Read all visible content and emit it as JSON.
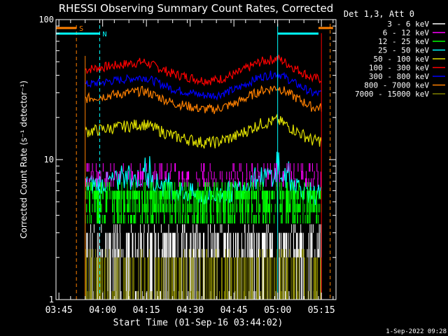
{
  "chart_data": {
    "type": "line",
    "title": "RHESSI Observing Summary Count Rates, Corrected",
    "ylabel": "Corrected Count Rate (s⁻¹ detector⁻¹)",
    "xlabel": "Start Time (01-Sep-16 03:44:02)",
    "scale_y": "log",
    "ylim": [
      1,
      100
    ],
    "xlim_minutes_after_03_44": [
      0,
      96
    ],
    "y_ticks": [
      "1",
      "10",
      "100"
    ],
    "x_ticks": [
      {
        "label": "03:45",
        "minute": 1
      },
      {
        "label": "04:00",
        "minute": 16
      },
      {
        "label": "04:15",
        "minute": 31
      },
      {
        "label": "04:30",
        "minute": 46
      },
      {
        "label": "04:45",
        "minute": 61
      },
      {
        "label": "05:00",
        "minute": 76
      },
      {
        "label": "05:15",
        "minute": 91
      }
    ],
    "legend_header": "Det 1,3, Att 0",
    "series": [
      {
        "name": "3 - 6 keV",
        "color": "#ffffff"
      },
      {
        "name": "6 - 12 keV",
        "color": "#ff00ff"
      },
      {
        "name": "12 - 25 keV",
        "color": "#00ff00"
      },
      {
        "name": "25 - 50 keV",
        "color": "#00ffff"
      },
      {
        "name": "50 - 100 keV",
        "color": "#e0e000"
      },
      {
        "name": "100 - 300 keV",
        "color": "#ff0000"
      },
      {
        "name": "300 - 800 keV",
        "color": "#0000ff"
      },
      {
        "name": "800 - 7000 keV",
        "color": "#ff8000"
      },
      {
        "name": "7000 - 15000 keV",
        "color": "#808000"
      }
    ],
    "red_series_profile": {
      "minutes": [
        10,
        20,
        30,
        40,
        50,
        55,
        62,
        70,
        76,
        82,
        88,
        91
      ],
      "values": [
        44,
        47,
        50,
        41,
        37,
        37,
        41,
        50,
        53,
        45,
        38,
        38
      ]
    },
    "markers": [
      {
        "label": "S",
        "color": "#ff8000",
        "minute": 7
      },
      {
        "label": "N",
        "color": "#00ffff",
        "minute": 15
      }
    ]
  },
  "footer": {
    "timestamp": "1-Sep-2022 09:28"
  }
}
